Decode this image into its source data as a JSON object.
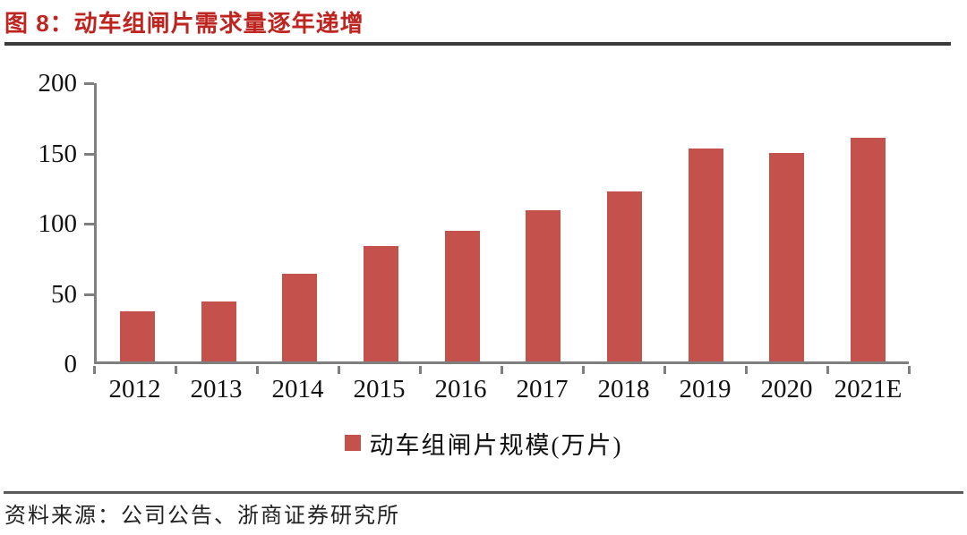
{
  "figure": {
    "title": "图 8：动车组闸片需求量逐年递增",
    "source": "资料来源：公司公告、浙商证券研究所"
  },
  "legend": {
    "label": "动车组闸片规模(万片)"
  },
  "colors": {
    "bar": "#C4514C",
    "axis": "#7F7F7F",
    "title": "#BE2420",
    "rule_dark": "#3B3B3B",
    "rule_gray": "#5A5A5A"
  },
  "chart_data": {
    "type": "bar",
    "title": "图 8：动车组闸片需求量逐年递增",
    "categories": [
      "2012",
      "2013",
      "2014",
      "2015",
      "2016",
      "2017",
      "2018",
      "2019",
      "2020",
      "2021E"
    ],
    "values": [
      36,
      43,
      63,
      83,
      94,
      109,
      122,
      153,
      150,
      161
    ],
    "series_name": "动车组闸片规模(万片)",
    "xlabel": "",
    "ylabel": "",
    "ylim": [
      0,
      200
    ],
    "yticks": [
      0,
      50,
      100,
      150,
      200
    ],
    "grid": false,
    "legend_position": "bottom"
  }
}
